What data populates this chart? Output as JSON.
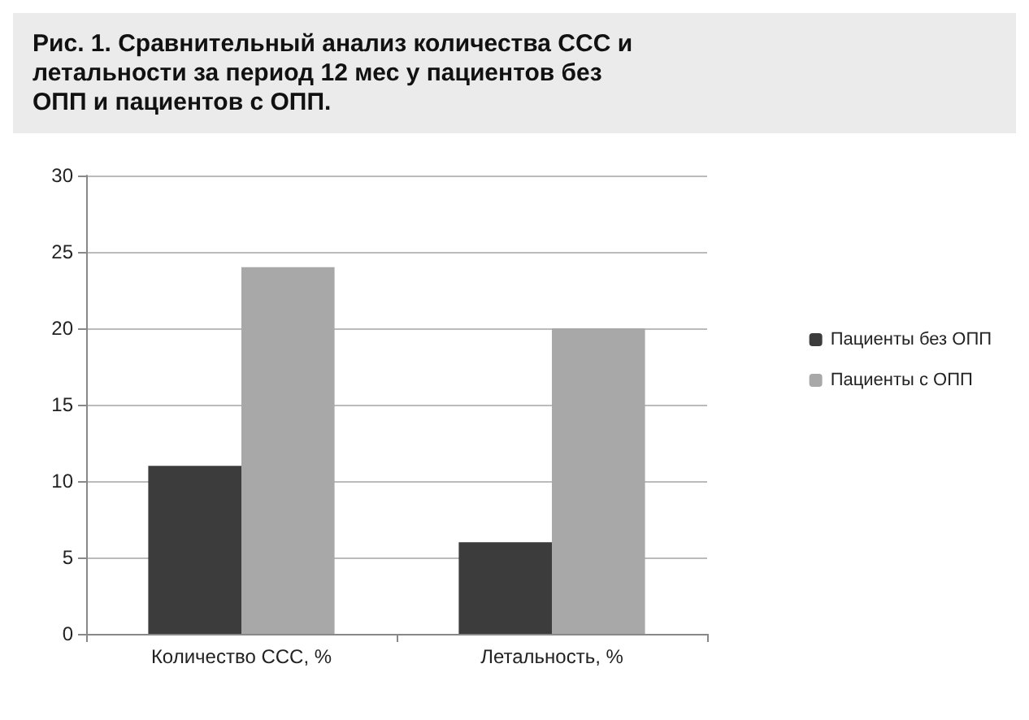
{
  "chart_data": {
    "type": "bar",
    "title": "Рис. 1. Сравнительный анализ количества ССС и летальности за период 12 мес у пациентов без ОПП и пациентов с ОПП.",
    "categories": [
      "Количество ССС, %",
      "Летальность, %"
    ],
    "series": [
      {
        "name": "Пациенты без ОПП",
        "color": "#3c3c3c",
        "values": [
          11,
          6
        ]
      },
      {
        "name": "Пациенты с ОПП",
        "color": "#a8a8a8",
        "values": [
          24,
          20
        ]
      }
    ],
    "ylim": [
      0,
      30
    ],
    "yticks": [
      0,
      5,
      10,
      15,
      20,
      25,
      30
    ],
    "grid": "y",
    "legend": "right"
  }
}
